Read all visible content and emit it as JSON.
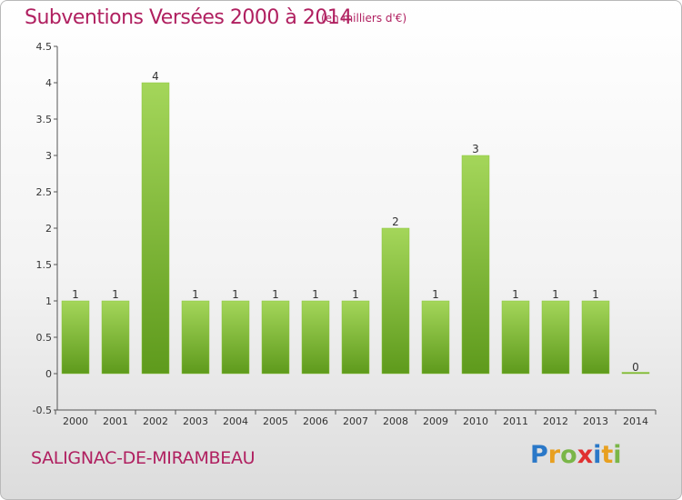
{
  "title": "Subventions Versées 2000 à 2014",
  "unit_note": "(en milliers d'€)",
  "commune": "SALIGNAC-DE-MIRAMBEAU",
  "logo": {
    "text": "Proxiti",
    "letters": [
      {
        "ch": "P",
        "color": "#2a78c8"
      },
      {
        "ch": "r",
        "color": "#e8a020"
      },
      {
        "ch": "o",
        "color": "#7ab648"
      },
      {
        "ch": "x",
        "color": "#e03030"
      },
      {
        "ch": "i",
        "color": "#2a78c8"
      },
      {
        "ch": "t",
        "color": "#e8a020"
      },
      {
        "ch": "i",
        "color": "#7ab648"
      }
    ]
  },
  "colors": {
    "title": "#b02060",
    "bar_light": "#a4d65a",
    "bar_dark": "#5e9a1c",
    "axis": "#555555",
    "grid": "#dddddd"
  },
  "chart_data": {
    "type": "bar",
    "title": "Subventions Versées 2000 à 2014",
    "subtitle": "(en milliers d'€)",
    "xlabel": "",
    "ylabel": "",
    "categories": [
      "2000",
      "2001",
      "2002",
      "2003",
      "2004",
      "2005",
      "2006",
      "2007",
      "2008",
      "2009",
      "2010",
      "2011",
      "2012",
      "2013",
      "2014"
    ],
    "values": [
      1,
      1,
      4,
      1,
      1,
      1,
      1,
      1,
      2,
      1,
      3,
      1,
      1,
      1,
      0
    ],
    "data_labels": [
      "1",
      "1",
      "4",
      "1",
      "1",
      "1",
      "1",
      "1",
      "2",
      "1",
      "3",
      "1",
      "1",
      "1",
      "0"
    ],
    "ylim": [
      -0.5,
      4.5
    ],
    "yticks": [
      "-0.5",
      "0",
      "0.5",
      "1",
      "1.5",
      "2",
      "2.5",
      "3",
      "3.5",
      "4",
      "4.5"
    ],
    "ytick_values": [
      -0.5,
      0,
      0.5,
      1,
      1.5,
      2,
      2.5,
      3,
      3.5,
      4,
      4.5
    ],
    "grid": false,
    "legend": "none"
  }
}
